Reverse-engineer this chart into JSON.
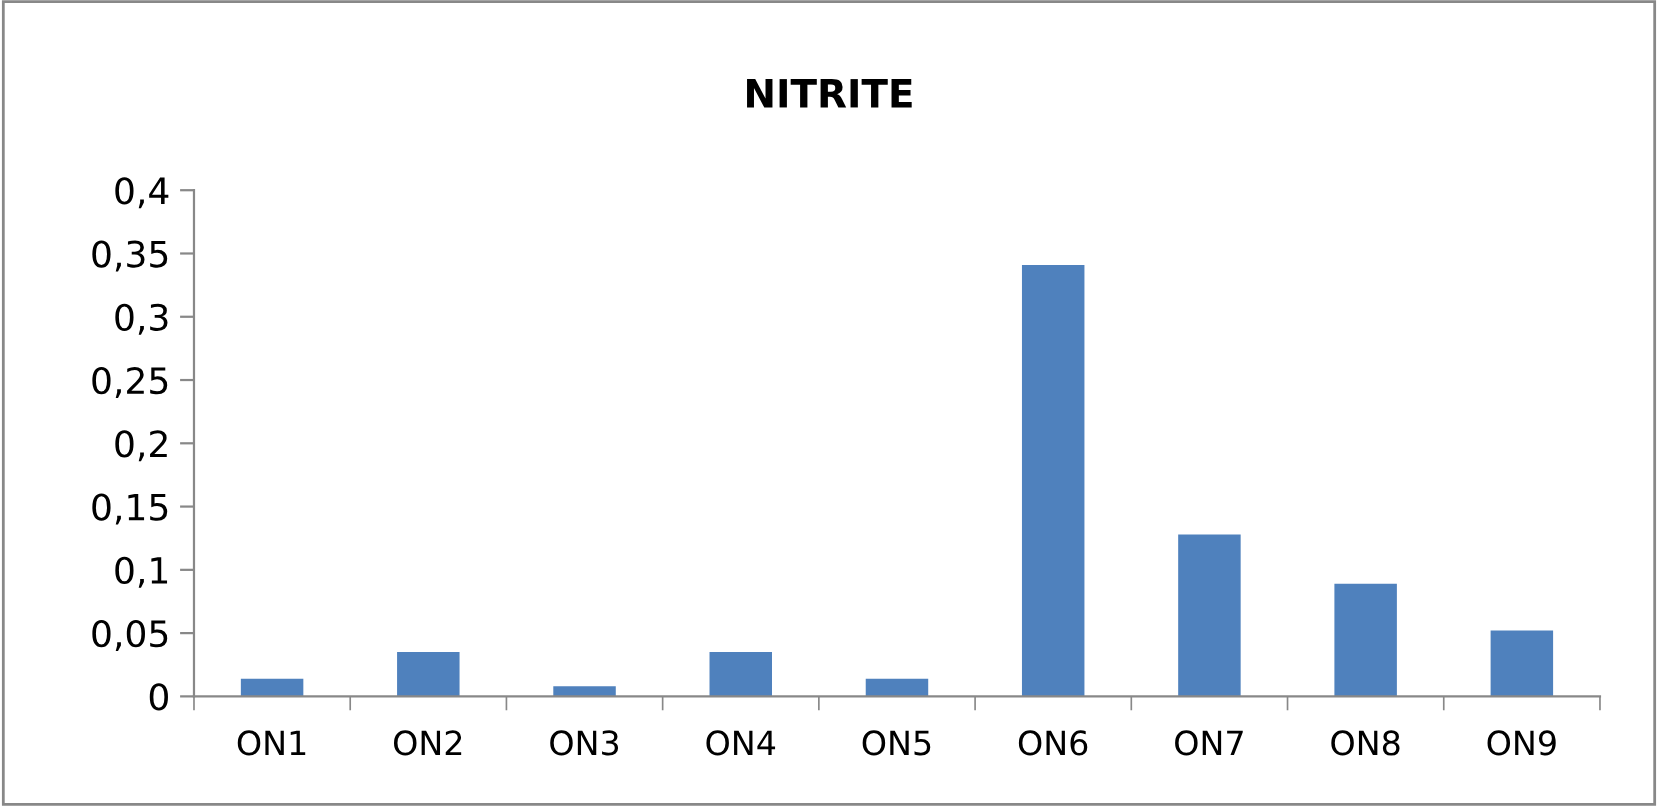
{
  "chart_data": {
    "type": "bar",
    "title": "NITRITE",
    "categories": [
      "ON1",
      "ON2",
      "ON3",
      "ON4",
      "ON5",
      "ON6",
      "ON7",
      "ON8",
      "ON9"
    ],
    "values": [
      0.014,
      0.035,
      0.008,
      0.035,
      0.014,
      0.341,
      0.128,
      0.089,
      0.052
    ],
    "color": "#4f81bd",
    "ylim": [
      0,
      0.4
    ],
    "yticks": [
      0,
      {
        "value": 0.05,
        "label": "0,05"
      },
      {
        "value": 0.1,
        "label": "0,1"
      },
      {
        "value": 0.15,
        "label": "0,15"
      },
      {
        "value": 0.2,
        "label": "0,2"
      },
      {
        "value": 0.25,
        "label": "0,25"
      },
      {
        "value": 0.3,
        "label": "0,3"
      },
      {
        "value": 0.35,
        "label": "0,35"
      },
      {
        "value": 0.4,
        "label": "0,4"
      }
    ],
    "grid": false,
    "legend": false
  }
}
